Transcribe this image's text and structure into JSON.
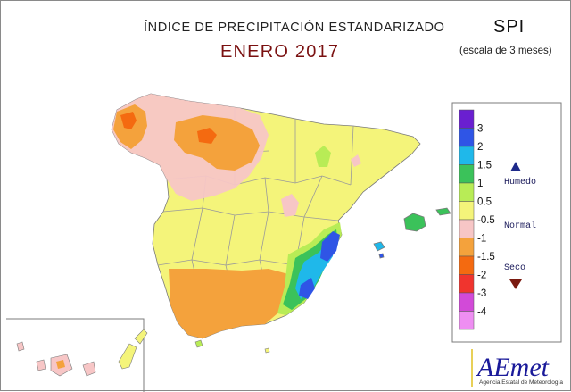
{
  "header": {
    "title": "ÍNDICE DE PRECIPITACIÓN ESTANDARIZADO",
    "subtitle": "ENERO 2017",
    "index": "SPI",
    "scale_note": "(escala de 3 meses)"
  },
  "legend": {
    "bins": [
      {
        "label": "3",
        "color": "#6a1fd0"
      },
      {
        "label": "2",
        "color": "#2f55e6"
      },
      {
        "label": "1.5",
        "color": "#1fb8ea"
      },
      {
        "label": "1",
        "color": "#3bc25a"
      },
      {
        "label": "0.5",
        "color": "#b8ec56"
      },
      {
        "label": "-0.5",
        "color": "#f4f47a"
      },
      {
        "label": "-1",
        "color": "#f7c6c6"
      },
      {
        "label": "-1.5",
        "color": "#f4a23c"
      },
      {
        "label": "-2",
        "color": "#f46a10"
      },
      {
        "label": "-3",
        "color": "#f0342e"
      },
      {
        "label": "-4",
        "color": "#d24ad8"
      },
      {
        "label": "",
        "color": "#ee8ef2"
      }
    ],
    "wet_label": "Humedo",
    "normal_label": "Normal",
    "dry_label": "Seco",
    "wet_color": "#1e2a8a",
    "dry_color": "#7a1a10"
  },
  "logo": {
    "name": "AEmet",
    "agency": "Agencia Estatal de Meteorología"
  },
  "map": {
    "dominant_class": "-0.5 to 0.5",
    "regions_note": ""
  }
}
